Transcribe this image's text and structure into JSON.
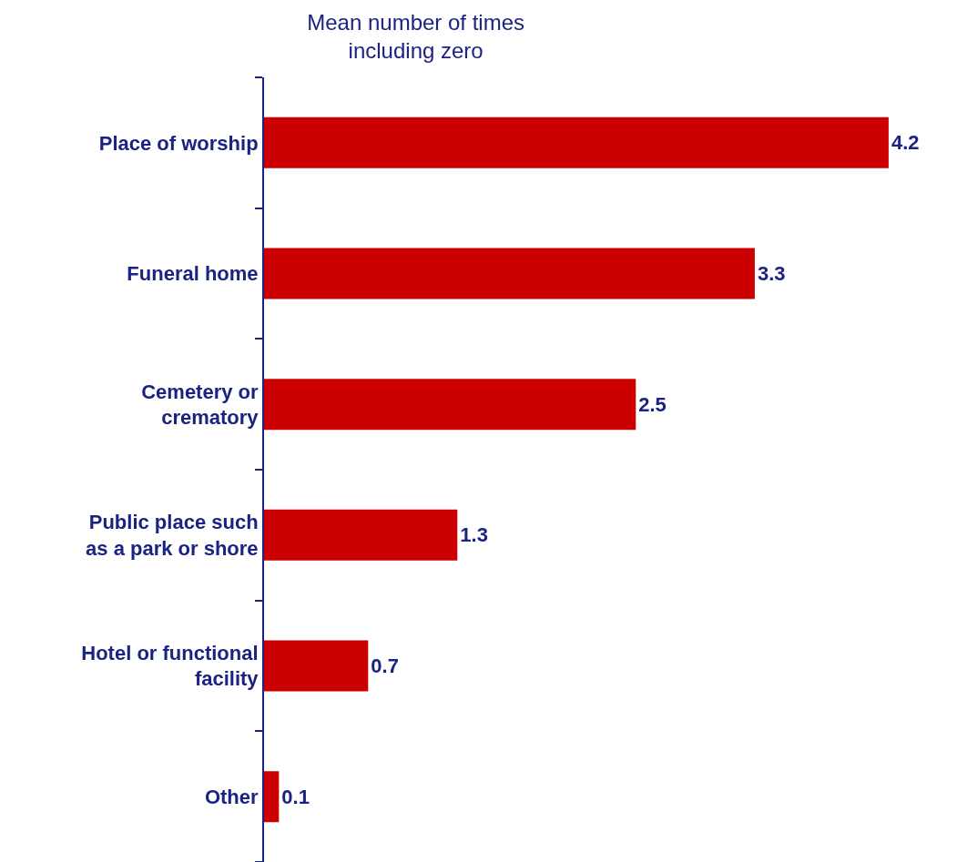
{
  "chart_data": {
    "type": "bar",
    "orientation": "horizontal",
    "title": "Mean number of times including zero",
    "categories": [
      "Place of worship",
      "Funeral home",
      "Cemetery or crematory",
      "Public place such as a park or shore",
      "Hotel or functional facility",
      "Other"
    ],
    "values": [
      4.2,
      3.3,
      2.5,
      1.3,
      0.7,
      0.1
    ],
    "color": "#cc0000",
    "data_labels": true,
    "tick_labels": "y",
    "legend": false
  }
}
